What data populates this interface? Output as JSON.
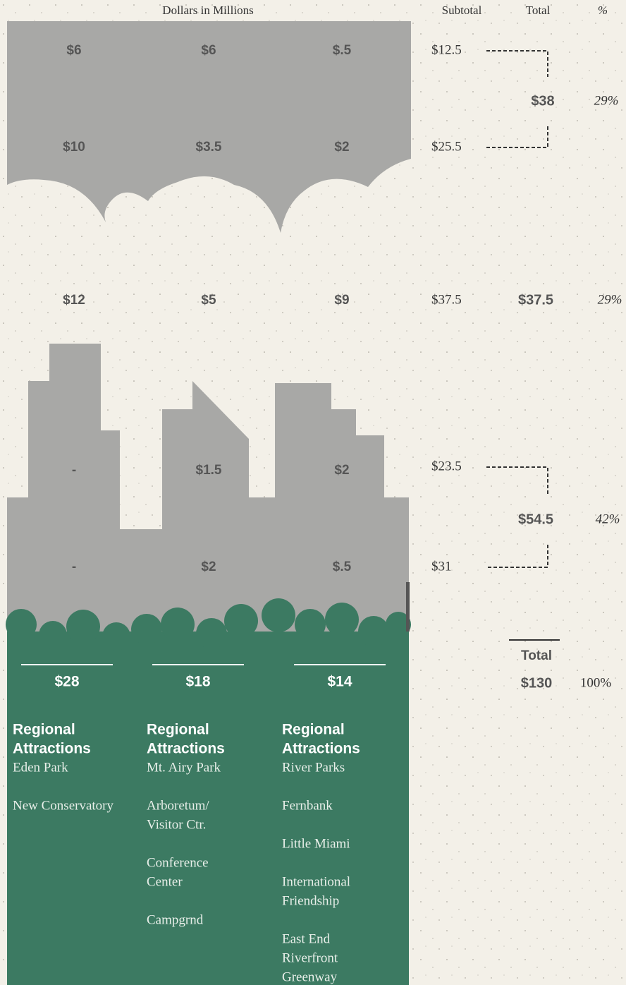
{
  "header": {
    "units": "Dollars in Millions",
    "subtotal": "Subtotal",
    "total": "Total",
    "percent": "%"
  },
  "rows": [
    [
      "$6",
      "$6",
      "$.5"
    ],
    [
      "$10",
      "$3.5",
      "$2"
    ],
    [
      "$12",
      "$5",
      "$9"
    ],
    [
      "-",
      "$1.5",
      "$2"
    ],
    [
      "-",
      "$2",
      "$.5"
    ]
  ],
  "columns": [
    {
      "total": "$28",
      "heading": [
        "Regional",
        "Attractions"
      ],
      "items": [
        [
          "Eden Park"
        ],
        [
          "New Conservatory"
        ]
      ]
    },
    {
      "total": "$18",
      "heading": [
        "Regional",
        "Attractions"
      ],
      "items": [
        [
          "Mt. Airy Park"
        ],
        [
          "Arboretum/",
          "Visitor Ctr."
        ],
        [
          "Conference",
          "Center"
        ],
        [
          "Campgrnd"
        ]
      ]
    },
    {
      "total": "$14",
      "heading": [
        "Regional",
        "Attractions"
      ],
      "items": [
        [
          "River Parks"
        ],
        [
          "Fernbank"
        ],
        [
          "Little Miami"
        ],
        [
          "International",
          "Friendship"
        ],
        [
          "East End",
          "Riverfront",
          "Greenway"
        ]
      ]
    }
  ],
  "groups": [
    {
      "subtotals": [
        "$12.5",
        "$25.5"
      ],
      "total": "$38",
      "percent": "29%"
    },
    {
      "subtotals": [
        "$37.5"
      ],
      "total": "$37.5",
      "percent": "29%"
    },
    {
      "subtotals": [
        "$23.5",
        "$31"
      ],
      "total": "$54.5",
      "percent": "42%"
    }
  ],
  "grand_total": {
    "label": "Total",
    "value": "$130",
    "percent": "100%"
  }
}
